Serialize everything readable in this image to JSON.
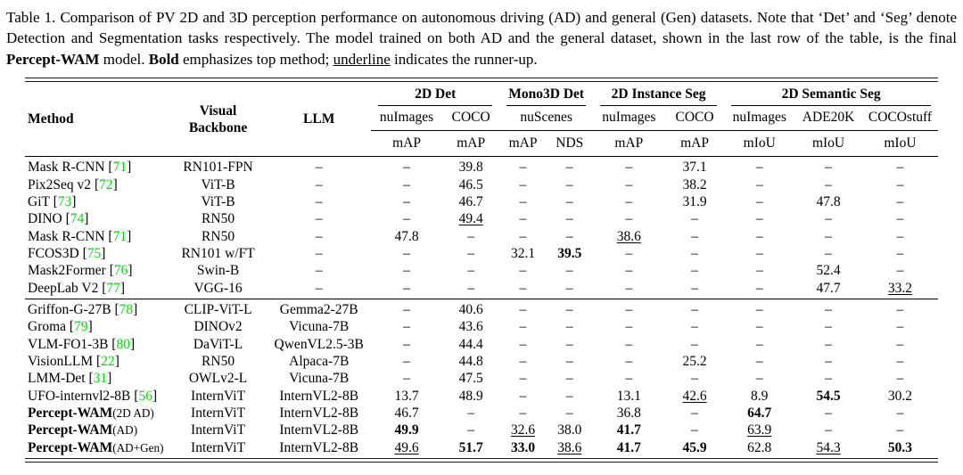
{
  "colors": {
    "citation_green": "#00dd00",
    "text": "#000000",
    "background": "#ffffff"
  },
  "caption": {
    "segments": [
      {
        "text": "Table 1. Comparison of PV 2D and 3D perception performance on autonomous driving (AD) and general (Gen) datasets. Note that ‘Det’ and ‘Seg’ denote Detection and Segmentation tasks respectively. The model trained on both AD and the general dataset, shown in the last row of the table, is the final ",
        "style": "n"
      },
      {
        "text": "Percept-WAM",
        "style": "b"
      },
      {
        "text": " model. ",
        "style": "n"
      },
      {
        "text": "Bold",
        "style": "b"
      },
      {
        "text": " emphasizes top method; ",
        "style": "n"
      },
      {
        "text": "underline",
        "style": "u"
      },
      {
        "text": " indicates the runner-up.",
        "style": "n"
      }
    ]
  },
  "table": {
    "col_widths_pct": [
      15.8,
      10.7,
      11.4,
      7.8,
      6.3,
      5.1,
      5.1,
      7.9,
      6.5,
      7.7,
      7.4,
      8.3
    ],
    "header": {
      "method": "Method",
      "backbone": "Visual Backbone",
      "llm": "LLM",
      "groups": [
        {
          "label": "2D Det",
          "colspan": 2
        },
        {
          "label": "Mono3D Det",
          "colspan": 2
        },
        {
          "label": "2D Instance Seg",
          "colspan": 2
        },
        {
          "label": "2D Semantic Seg",
          "colspan": 3
        }
      ],
      "datasets": [
        {
          "label": "nuImages",
          "colspan": 1
        },
        {
          "label": "COCO",
          "colspan": 1
        },
        {
          "label": "nuScenes",
          "colspan": 2
        },
        {
          "label": "nuImages",
          "colspan": 1
        },
        {
          "label": "COCO",
          "colspan": 1
        },
        {
          "label": "nuImages",
          "colspan": 1
        },
        {
          "label": "ADE20K",
          "colspan": 1
        },
        {
          "label": "COCOstuff",
          "colspan": 1
        }
      ],
      "metrics": [
        "mAP",
        "mAP",
        "mAP",
        "NDS",
        "mAP",
        "mAP",
        "mIoU",
        "mIoU",
        "mIoU"
      ]
    },
    "groups": [
      {
        "rows": [
          {
            "method": "Mask R-CNN",
            "cite": "71",
            "bold": false,
            "suffix": "",
            "backbone": "RN101-FPN",
            "llm": "–",
            "cells": [
              [
                "–",
                "n"
              ],
              [
                "39.8",
                "n"
              ],
              [
                "–",
                "n"
              ],
              [
                "–",
                "n"
              ],
              [
                "–",
                "n"
              ],
              [
                "37.1",
                "n"
              ],
              [
                "–",
                "n"
              ],
              [
                "–",
                "n"
              ],
              [
                "–",
                "n"
              ]
            ]
          },
          {
            "method": "Pix2Seq v2",
            "cite": "72",
            "bold": false,
            "suffix": "",
            "backbone": "ViT-B",
            "llm": "–",
            "cells": [
              [
                "–",
                "n"
              ],
              [
                "46.5",
                "n"
              ],
              [
                "–",
                "n"
              ],
              [
                "–",
                "n"
              ],
              [
                "–",
                "n"
              ],
              [
                "38.2",
                "n"
              ],
              [
                "–",
                "n"
              ],
              [
                "–",
                "n"
              ],
              [
                "–",
                "n"
              ]
            ]
          },
          {
            "method": "GiT",
            "cite": "73",
            "bold": false,
            "suffix": "",
            "backbone": "ViT-B",
            "llm": "–",
            "cells": [
              [
                "–",
                "n"
              ],
              [
                "46.7",
                "n"
              ],
              [
                "–",
                "n"
              ],
              [
                "–",
                "n"
              ],
              [
                "–",
                "n"
              ],
              [
                "31.9",
                "n"
              ],
              [
                "–",
                "n"
              ],
              [
                "47.8",
                "n"
              ],
              [
                "–",
                "n"
              ]
            ]
          },
          {
            "method": "DINO",
            "cite": "74",
            "bold": false,
            "suffix": "",
            "backbone": "RN50",
            "llm": "–",
            "cells": [
              [
                "–",
                "n"
              ],
              [
                "49.4",
                "u"
              ],
              [
                "–",
                "n"
              ],
              [
                "–",
                "n"
              ],
              [
                "–",
                "n"
              ],
              [
                "–",
                "n"
              ],
              [
                "–",
                "n"
              ],
              [
                "–",
                "n"
              ],
              [
                "–",
                "n"
              ]
            ]
          },
          {
            "method": "Mask R-CNN",
            "cite": "71",
            "bold": false,
            "suffix": "",
            "backbone": "RN50",
            "llm": "–",
            "cells": [
              [
                "47.8",
                "n"
              ],
              [
                "–",
                "n"
              ],
              [
                "–",
                "n"
              ],
              [
                "–",
                "n"
              ],
              [
                "38.6",
                "u"
              ],
              [
                "–",
                "n"
              ],
              [
                "–",
                "n"
              ],
              [
                "–",
                "n"
              ],
              [
                "–",
                "n"
              ]
            ]
          },
          {
            "method": "FCOS3D",
            "cite": "75",
            "bold": false,
            "suffix": "",
            "backbone": "RN101 w/FT",
            "llm": "–",
            "cells": [
              [
                "–",
                "n"
              ],
              [
                "–",
                "n"
              ],
              [
                "32.1",
                "n"
              ],
              [
                "39.5",
                "b"
              ],
              [
                "–",
                "n"
              ],
              [
                "–",
                "n"
              ],
              [
                "–",
                "n"
              ],
              [
                "–",
                "n"
              ],
              [
                "–",
                "n"
              ]
            ]
          },
          {
            "method": "Mask2Former",
            "cite": "76",
            "bold": false,
            "suffix": "",
            "backbone": "Swin-B",
            "llm": "–",
            "cells": [
              [
                "–",
                "n"
              ],
              [
                "–",
                "n"
              ],
              [
                "–",
                "n"
              ],
              [
                "–",
                "n"
              ],
              [
                "–",
                "n"
              ],
              [
                "–",
                "n"
              ],
              [
                "–",
                "n"
              ],
              [
                "52.4",
                "n"
              ],
              [
                "–",
                "n"
              ]
            ]
          },
          {
            "method": "DeepLab V2",
            "cite": "77",
            "bold": false,
            "suffix": "",
            "backbone": "VGG-16",
            "llm": "–",
            "cells": [
              [
                "–",
                "n"
              ],
              [
                "–",
                "n"
              ],
              [
                "–",
                "n"
              ],
              [
                "–",
                "n"
              ],
              [
                "–",
                "n"
              ],
              [
                "–",
                "n"
              ],
              [
                "–",
                "n"
              ],
              [
                "47.7",
                "n"
              ],
              [
                "33.2",
                "u"
              ]
            ]
          }
        ]
      },
      {
        "rows": [
          {
            "method": "Griffon-G-27B",
            "cite": "78",
            "bold": false,
            "suffix": "",
            "backbone": "CLIP-ViT-L",
            "llm": "Gemma2-27B",
            "cells": [
              [
                "–",
                "n"
              ],
              [
                "40.6",
                "n"
              ],
              [
                "–",
                "n"
              ],
              [
                "–",
                "n"
              ],
              [
                "–",
                "n"
              ],
              [
                "–",
                "n"
              ],
              [
                "–",
                "n"
              ],
              [
                "–",
                "n"
              ],
              [
                "–",
                "n"
              ]
            ]
          },
          {
            "method": "Groma",
            "cite": "79",
            "bold": false,
            "suffix": "",
            "backbone": "DINOv2",
            "llm": "Vicuna-7B",
            "cells": [
              [
                "–",
                "n"
              ],
              [
                "43.6",
                "n"
              ],
              [
                "–",
                "n"
              ],
              [
                "–",
                "n"
              ],
              [
                "–",
                "n"
              ],
              [
                "–",
                "n"
              ],
              [
                "–",
                "n"
              ],
              [
                "–",
                "n"
              ],
              [
                "–",
                "n"
              ]
            ]
          },
          {
            "method": "VLM-FO1-3B",
            "cite": "80",
            "bold": false,
            "suffix": "",
            "backbone": "DaViT-L",
            "llm": "QwenVL2.5-3B",
            "cells": [
              [
                "–",
                "n"
              ],
              [
                "44.4",
                "n"
              ],
              [
                "–",
                "n"
              ],
              [
                "–",
                "n"
              ],
              [
                "–",
                "n"
              ],
              [
                "–",
                "n"
              ],
              [
                "–",
                "n"
              ],
              [
                "–",
                "n"
              ],
              [
                "–",
                "n"
              ]
            ]
          },
          {
            "method": "VisionLLM",
            "cite": "22",
            "bold": false,
            "suffix": "",
            "backbone": "RN50",
            "llm": "Alpaca-7B",
            "cells": [
              [
                "–",
                "n"
              ],
              [
                "44.8",
                "n"
              ],
              [
                "–",
                "n"
              ],
              [
                "–",
                "n"
              ],
              [
                "–",
                "n"
              ],
              [
                "25.2",
                "n"
              ],
              [
                "–",
                "n"
              ],
              [
                "–",
                "n"
              ],
              [
                "–",
                "n"
              ]
            ]
          },
          {
            "method": "LMM-Det",
            "cite": "31",
            "bold": false,
            "suffix": "",
            "backbone": "OWLv2-L",
            "llm": "Vicuna-7B",
            "cells": [
              [
                "–",
                "n"
              ],
              [
                "47.5",
                "n"
              ],
              [
                "–",
                "n"
              ],
              [
                "–",
                "n"
              ],
              [
                "–",
                "n"
              ],
              [
                "–",
                "n"
              ],
              [
                "–",
                "n"
              ],
              [
                "–",
                "n"
              ],
              [
                "–",
                "n"
              ]
            ]
          },
          {
            "method": "UFO-internvl2-8B",
            "cite": "56",
            "bold": false,
            "suffix": "",
            "backbone": "InternViT",
            "llm": "InternVL2-8B",
            "cells": [
              [
                "13.7",
                "n"
              ],
              [
                "48.9",
                "n"
              ],
              [
                "–",
                "n"
              ],
              [
                "–",
                "n"
              ],
              [
                "13.1",
                "n"
              ],
              [
                "42.6",
                "u"
              ],
              [
                "8.9",
                "n"
              ],
              [
                "54.5",
                "b"
              ],
              [
                "30.2",
                "n"
              ]
            ]
          },
          {
            "method": "Percept-WAM",
            "cite": "",
            "bold": true,
            "suffix": "(2D AD)",
            "backbone": "InternViT",
            "llm": "InternVL2-8B",
            "cells": [
              [
                "46.7",
                "n"
              ],
              [
                "–",
                "n"
              ],
              [
                "–",
                "n"
              ],
              [
                "–",
                "n"
              ],
              [
                "36.8",
                "n"
              ],
              [
                "–",
                "n"
              ],
              [
                "64.7",
                "b"
              ],
              [
                "–",
                "n"
              ],
              [
                "–",
                "n"
              ]
            ]
          },
          {
            "method": "Percept-WAM",
            "cite": "",
            "bold": true,
            "suffix": "(AD)",
            "backbone": "InternViT",
            "llm": "InternVL2-8B",
            "cells": [
              [
                "49.9",
                "b"
              ],
              [
                "–",
                "n"
              ],
              [
                "32.6",
                "u"
              ],
              [
                "38.0",
                "n"
              ],
              [
                "41.7",
                "b"
              ],
              [
                "–",
                "n"
              ],
              [
                "63.9",
                "u"
              ],
              [
                "–",
                "n"
              ],
              [
                "–",
                "n"
              ]
            ]
          },
          {
            "method": "Percept-WAM",
            "cite": "",
            "bold": true,
            "suffix": "(AD+Gen)",
            "backbone": "InternViT",
            "llm": "InternVL2-8B",
            "cells": [
              [
                "49.6",
                "u"
              ],
              [
                "51.7",
                "b"
              ],
              [
                "33.0",
                "b"
              ],
              [
                "38.6",
                "u"
              ],
              [
                "41.7",
                "b"
              ],
              [
                "45.9",
                "b"
              ],
              [
                "62.8",
                "n"
              ],
              [
                "54.3",
                "u"
              ],
              [
                "50.3",
                "b"
              ]
            ]
          }
        ]
      }
    ]
  }
}
